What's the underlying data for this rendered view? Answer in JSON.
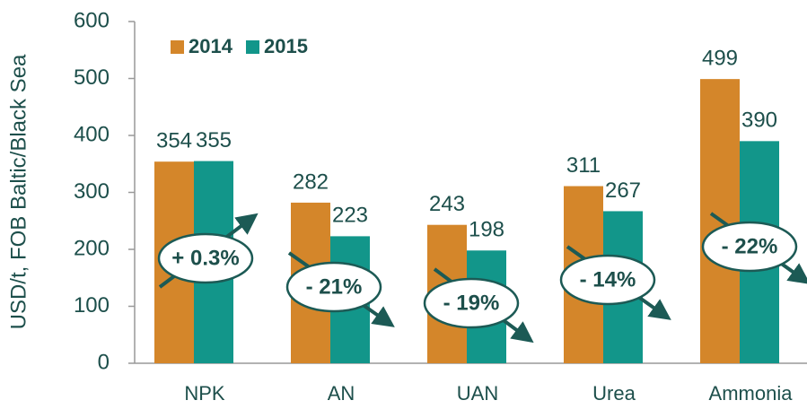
{
  "chart_data": {
    "type": "bar",
    "y_label": "USD/t, FOB Baltic/Black Sea",
    "categories": [
      "NPK",
      "AN",
      "UAN",
      "Urea",
      "Ammonia"
    ],
    "series": [
      {
        "name": "2014",
        "color": "#d4862a",
        "values": [
          354,
          282,
          243,
          311,
          499
        ]
      },
      {
        "name": "2015",
        "color": "#12968a",
        "values": [
          355,
          223,
          198,
          267,
          390
        ]
      }
    ],
    "annotations": [
      "+ 0.3%",
      "- 21%",
      "- 19%",
      "- 14%",
      "- 22%"
    ],
    "ylim": [
      0,
      600
    ],
    "yticks": [
      0,
      100,
      200,
      300,
      400,
      500,
      600
    ],
    "grid": false,
    "legend": "top-left"
  }
}
